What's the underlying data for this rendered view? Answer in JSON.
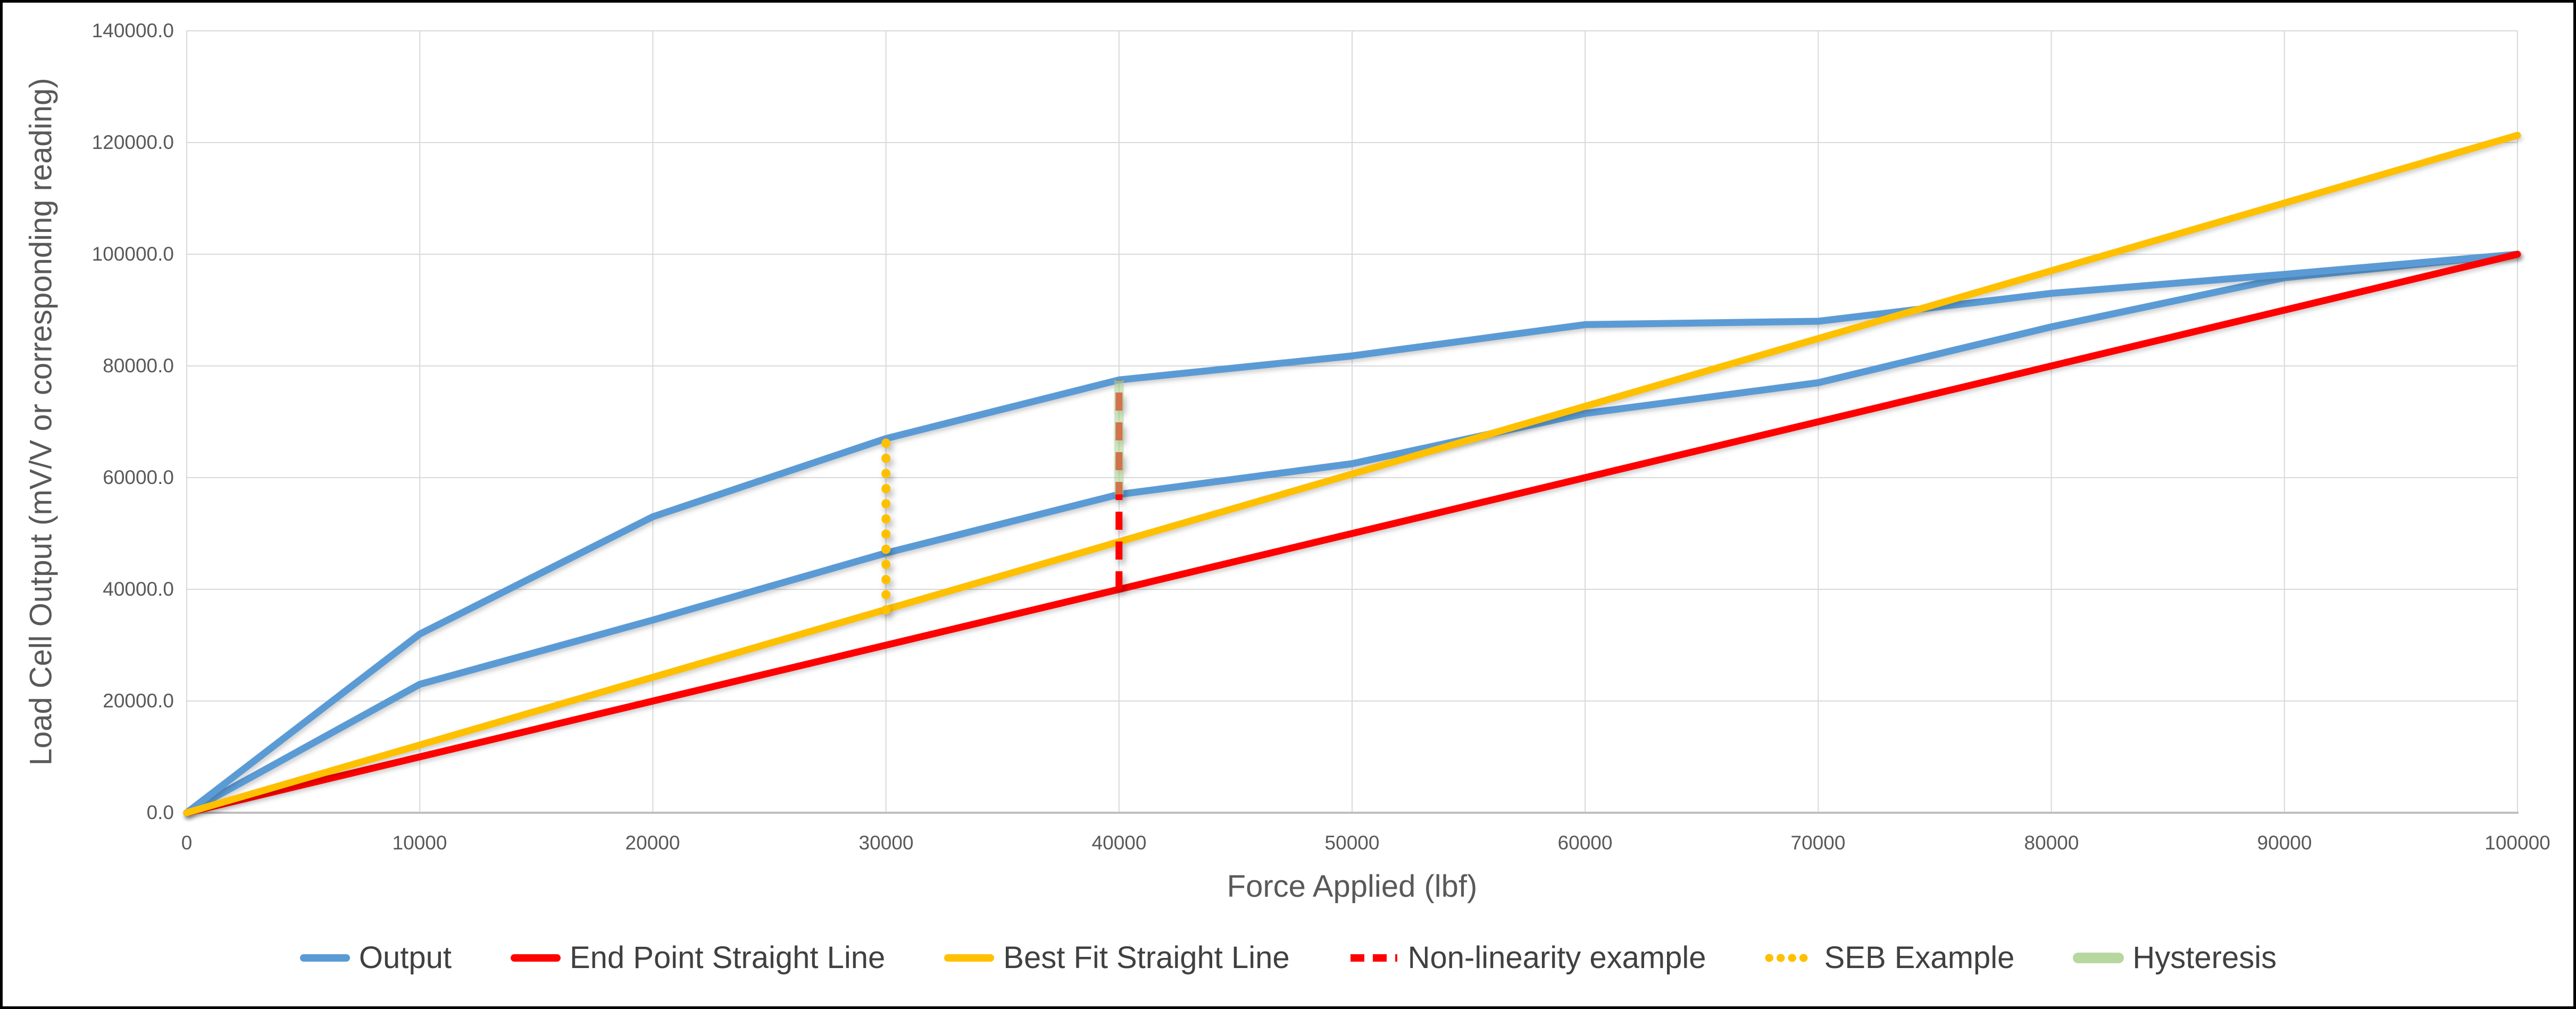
{
  "chart_data": {
    "type": "line",
    "title": "",
    "xlabel": "Force Applied (lbf)",
    "ylabel": "Load Cell Output (mV/V or corresponding reading)",
    "xlim": [
      0,
      100000
    ],
    "ylim": [
      0,
      140000
    ],
    "grid": true,
    "legend_position": "bottom",
    "x_ticks": [
      0,
      10000,
      20000,
      30000,
      40000,
      50000,
      60000,
      70000,
      80000,
      90000,
      100000
    ],
    "x_tick_labels": [
      "0",
      "10000",
      "20000",
      "30000",
      "40000",
      "50000",
      "60000",
      "70000",
      "80000",
      "90000",
      "100000"
    ],
    "y_ticks": [
      0,
      20000,
      40000,
      60000,
      80000,
      100000,
      120000,
      140000
    ],
    "y_tick_labels": [
      "0.0",
      "20000.0",
      "40000.0",
      "60000.0",
      "80000.0",
      "100000.0",
      "120000.0",
      "140000.0"
    ],
    "colors": {
      "output_blue": "#5B9BD5",
      "end_point_red": "#FF0000",
      "best_fit_yellow": "#FFC000",
      "hysteresis_green": "#A9D18E",
      "gridline": "#D9D9D9",
      "axis_line": "#BFBFBF",
      "tick_text": "#595959",
      "legend_text": "#404040"
    },
    "series": [
      {
        "id": "output-loading",
        "name": "Output (loading branch)",
        "legend": "Output",
        "color": "#5B9BD5",
        "style": "solid",
        "x": [
          0,
          10000,
          20000,
          30000,
          40000,
          50000,
          60000,
          70000,
          80000,
          90000,
          100000
        ],
        "y": [
          0,
          23000,
          34500,
          46500,
          57000,
          62500,
          71500,
          77000,
          87000,
          95800,
          100000
        ]
      },
      {
        "id": "output-unloading",
        "name": "Output (unloading branch)",
        "legend": "Output",
        "color": "#5B9BD5",
        "style": "solid",
        "x": [
          0,
          10000,
          20000,
          30000,
          40000,
          50000,
          60000,
          70000,
          80000,
          90000,
          100000
        ],
        "y": [
          0,
          32000,
          53000,
          67000,
          77500,
          81800,
          87400,
          88000,
          93000,
          96400,
          100000
        ]
      },
      {
        "id": "end-point-straight-line",
        "name": "End Point Straight Line",
        "color": "#FF0000",
        "style": "solid",
        "x": [
          0,
          100000
        ],
        "y": [
          0,
          100000
        ]
      },
      {
        "id": "best-fit-straight-line",
        "name": "Best Fit Straight Line",
        "color": "#FFC000",
        "style": "solid",
        "x": [
          0,
          100000
        ],
        "y": [
          0,
          121300
        ]
      },
      {
        "id": "non-linearity-example",
        "name": "Non-linearity example",
        "color": "#FF0000",
        "style": "dashed",
        "x": [
          40000,
          40000
        ],
        "y": [
          40000,
          77500
        ]
      },
      {
        "id": "hysteresis",
        "name": "Hysteresis",
        "color": "#A9D18E",
        "style": "solid-wide",
        "x": [
          40000,
          40000
        ],
        "y": [
          57000,
          77500
        ]
      },
      {
        "id": "seb-example",
        "name": "SEB Example",
        "color": "#FFC000",
        "style": "dotted",
        "x": [
          30000,
          30000
        ],
        "y": [
          36300,
          67000
        ]
      }
    ],
    "legend": [
      {
        "label": "Output",
        "style": "solid",
        "color": "#5B9BD5"
      },
      {
        "label": "End Point Straight Line",
        "style": "solid",
        "color": "#FF0000"
      },
      {
        "label": "Best Fit Straight Line",
        "style": "solid",
        "color": "#FFC000"
      },
      {
        "label": "Non-linearity example",
        "style": "dashed",
        "color": "#FF0000"
      },
      {
        "label": "SEB Example",
        "style": "dotted",
        "color": "#FFC000"
      },
      {
        "label": "Hysteresis",
        "style": "solid-wide",
        "color": "#A9D18E"
      }
    ]
  }
}
